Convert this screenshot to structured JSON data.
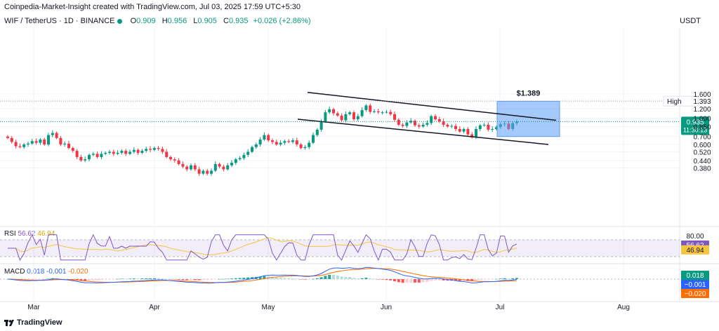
{
  "header": {
    "topline": "Coinpedia-Market-Insight created with TradingView.com, Jul 03, 2025 17:59 UTC+5:30",
    "symbol": "WIF / TetherUS · 1D · BINANCE",
    "o_label": "O",
    "o_value": "0.909",
    "h_label": "H",
    "h_value": "0.956",
    "l_label": "L",
    "l_value": "0.905",
    "c_label": "C",
    "c_value": "0.935",
    "change": "+0.026 (+2.86%)",
    "currency": "USDT"
  },
  "colors": {
    "up": "#089981",
    "down": "#f23645",
    "rsi": "#7e57c2",
    "rsi_ma": "#f5c542",
    "macd": "#2962ff",
    "signal": "#ff6d00",
    "target": "#5b9cf6"
  },
  "price_axis": {
    "ticks": [
      "1.600",
      "1.200",
      "1.000",
      "0.850",
      "0.700",
      "0.600",
      "0.520",
      "0.440",
      "0.380"
    ],
    "high_label": "High",
    "high_value": "1.393",
    "last_price": "0.935",
    "countdown": "11:30:13"
  },
  "annotation": {
    "target_label": "$1.389"
  },
  "rsi": {
    "label": "RSI",
    "value": "56.62",
    "ma_value": "46.94",
    "level": "80.00"
  },
  "macd": {
    "label": "MACD",
    "macd_value": "0.018",
    "hist_value": "-0.001",
    "signal_value": "-0.020",
    "axis_macd": "0.018",
    "axis_hist": "−0.001",
    "axis_signal": "−0.020"
  },
  "time_axis": {
    "labels": [
      "Mar",
      "Apr",
      "May",
      "Jun",
      "Jul",
      "Aug"
    ]
  },
  "footer": {
    "brand": "TradingView"
  },
  "chart_data": {
    "type": "candlestick",
    "symbol": "WIF/USDT",
    "interval": "1D",
    "ylim": [
      0.35,
      1.7
    ],
    "close_series": [
      0.68,
      0.63,
      0.58,
      0.57,
      0.6,
      0.61,
      0.64,
      0.62,
      0.66,
      0.6,
      0.72,
      0.75,
      0.68,
      0.6,
      0.61,
      0.56,
      0.53,
      0.47,
      0.44,
      0.45,
      0.49,
      0.5,
      0.47,
      0.5,
      0.51,
      0.52,
      0.5,
      0.51,
      0.53,
      0.5,
      0.52,
      0.54,
      0.51,
      0.53,
      0.55,
      0.54,
      0.56,
      0.55,
      0.52,
      0.47,
      0.45,
      0.44,
      0.41,
      0.39,
      0.37,
      0.4,
      0.37,
      0.34,
      0.36,
      0.34,
      0.36,
      0.41,
      0.39,
      0.37,
      0.4,
      0.42,
      0.45,
      0.46,
      0.49,
      0.52,
      0.57,
      0.6,
      0.66,
      0.72,
      0.65,
      0.63,
      0.6,
      0.62,
      0.64,
      0.63,
      0.65,
      0.6,
      0.56,
      0.57,
      0.62,
      0.72,
      0.8,
      0.94,
      1.12,
      1.19,
      1.1,
      1.05,
      0.96,
      1.08,
      1.12,
      0.98,
      1.04,
      1.17,
      1.28,
      1.13,
      1.14,
      1.12,
      1.12,
      1.13,
      1.08,
      0.97,
      0.88,
      0.86,
      0.92,
      0.95,
      0.87,
      0.85,
      0.88,
      0.91,
      1.04,
      0.98,
      0.94,
      0.88,
      0.85,
      0.86,
      0.81,
      0.77,
      0.81,
      0.73,
      0.69,
      0.81,
      0.87,
      0.88,
      0.8,
      0.81,
      0.84,
      0.89,
      0.9,
      0.81,
      0.909,
      0.935
    ],
    "target_box": {
      "top": 1.389,
      "bottom": 0.7
    },
    "channel": {
      "upper": [
        1.65,
        0.96
      ],
      "lower": [
        0.98,
        0.6
      ]
    },
    "rsi_range": [
      20,
      90
    ]
  }
}
